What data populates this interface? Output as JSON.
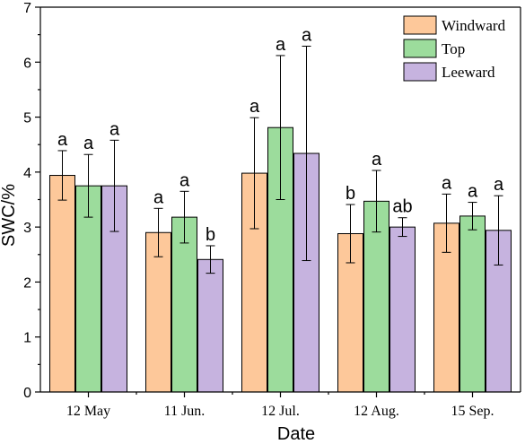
{
  "chart_data": {
    "type": "bar",
    "xlabel": "Date",
    "ylabel": "SWC/%",
    "ylim": [
      0,
      7
    ],
    "yticks": [
      0,
      1,
      2,
      3,
      4,
      5,
      6,
      7
    ],
    "categories": [
      "12 May",
      "11 Jun.",
      "12 Jul.",
      "12 Aug.",
      "15 Sep."
    ],
    "legend_position": "top-right",
    "series": [
      {
        "name": "Windward",
        "color": "#FDC89A",
        "values": [
          3.94,
          2.9,
          3.98,
          2.88,
          3.07
        ],
        "errors": [
          0.45,
          0.44,
          1.01,
          0.53,
          0.53
        ],
        "labels": [
          "a",
          "a",
          "a",
          "b",
          "a"
        ]
      },
      {
        "name": "Top",
        "color": "#9CDC9C",
        "values": [
          3.75,
          3.18,
          4.81,
          3.47,
          3.2
        ],
        "errors": [
          0.57,
          0.47,
          1.31,
          0.56,
          0.25
        ],
        "labels": [
          "a",
          "a",
          "a",
          "a",
          "a"
        ]
      },
      {
        "name": "Leeward",
        "color": "#C6B3DF",
        "values": [
          3.75,
          2.41,
          4.34,
          3.0,
          2.94
        ],
        "errors": [
          0.83,
          0.25,
          1.95,
          0.17,
          0.63
        ],
        "labels": [
          "a",
          "b",
          "a",
          "ab",
          "a"
        ]
      }
    ]
  }
}
